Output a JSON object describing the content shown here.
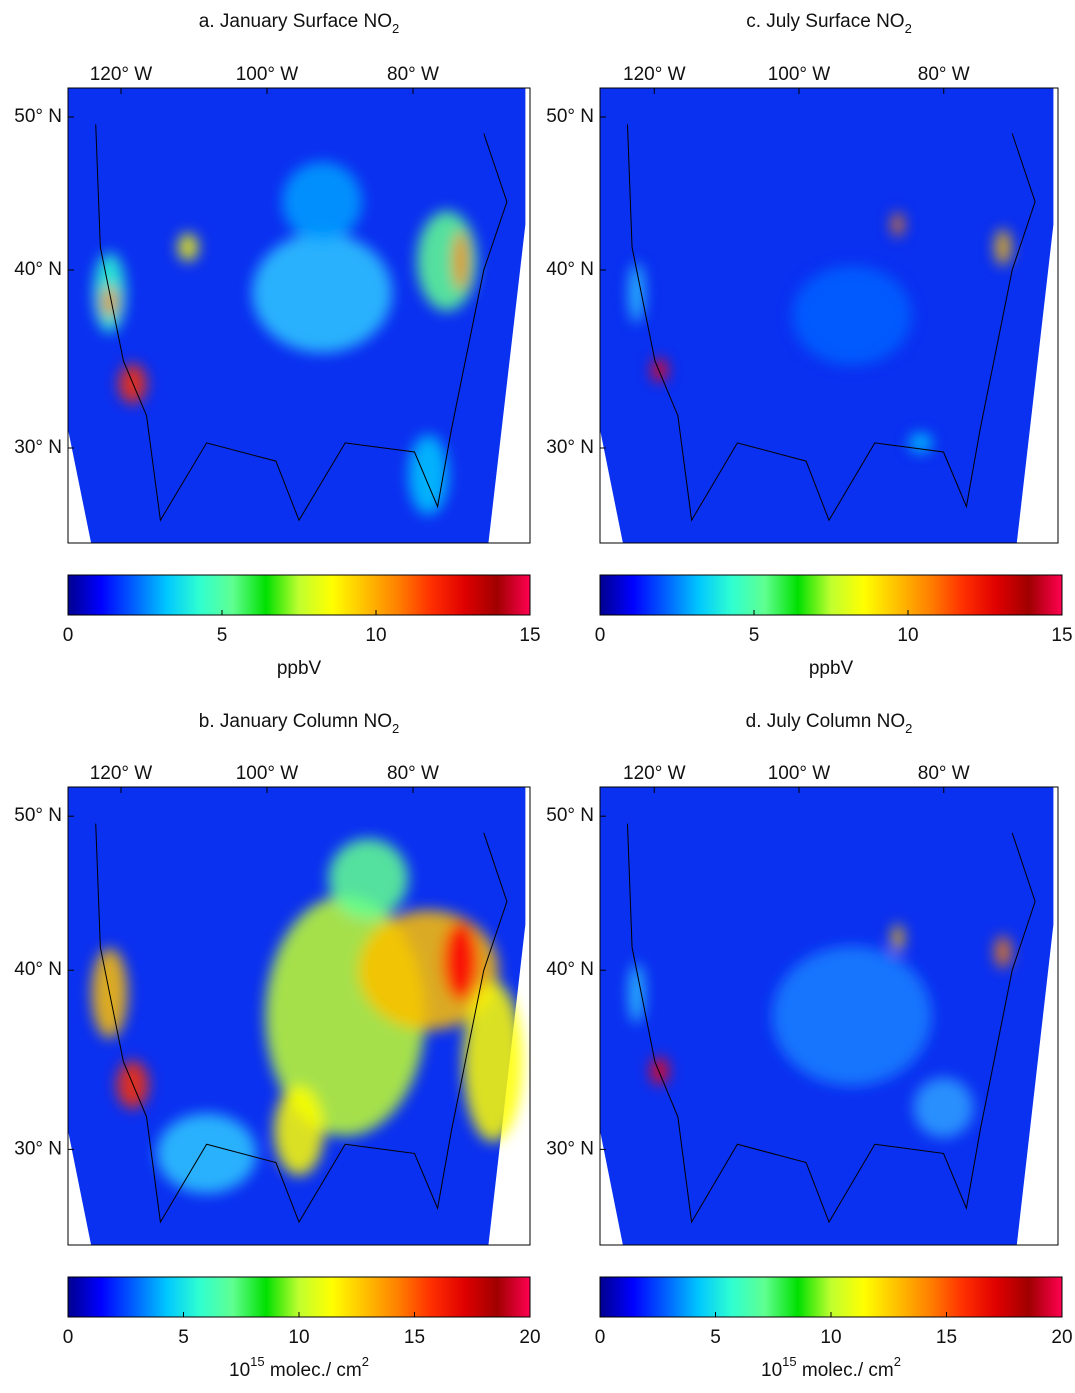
{
  "colormap": [
    "#00008f",
    "#0000ff",
    "#0060ff",
    "#00c8ff",
    "#30ffd0",
    "#60ff90",
    "#00e000",
    "#c0ff30",
    "#ffff00",
    "#ffc000",
    "#ff8000",
    "#ff3000",
    "#e00000",
    "#a00000",
    "#ff0050"
  ],
  "panels": [
    {
      "title": [
        {
          "text": "a.  January Surface NO"
        },
        {
          "text": "2",
          "sub": true
        }
      ],
      "lon_ticks": [
        {
          "value": -120,
          "label": "120° W"
        },
        {
          "value": -100,
          "label": "100° W"
        },
        {
          "value": -80,
          "label": "80° W"
        }
      ],
      "lat_ticks": [
        {
          "value": 50,
          "label": "50° N"
        },
        {
          "value": 40,
          "label": "40° N"
        },
        {
          "value": 30,
          "label": "30° N"
        }
      ],
      "colorbar": {
        "lim": [
          0,
          15
        ],
        "ticks": [
          0,
          5,
          10,
          15
        ],
        "unit": [
          {
            "text": "ppbV"
          }
        ]
      }
    },
    {
      "title": [
        {
          "text": "c.  July Surface NO"
        },
        {
          "text": "2",
          "sub": true
        }
      ],
      "lon_ticks": [
        {
          "value": -120,
          "label": "120° W"
        },
        {
          "value": -100,
          "label": "100° W"
        },
        {
          "value": -80,
          "label": "80° W"
        }
      ],
      "lat_ticks": [
        {
          "value": 50,
          "label": "50° N"
        },
        {
          "value": 40,
          "label": "40° N"
        },
        {
          "value": 30,
          "label": "30° N"
        }
      ],
      "colorbar": {
        "lim": [
          0,
          15
        ],
        "ticks": [
          0,
          5,
          10,
          15
        ],
        "unit": [
          {
            "text": "ppbV"
          }
        ]
      }
    },
    {
      "title": [
        {
          "text": "b.  January Column NO"
        },
        {
          "text": "2",
          "sub": true
        }
      ],
      "lon_ticks": [
        {
          "value": -120,
          "label": "120° W"
        },
        {
          "value": -100,
          "label": "100° W"
        },
        {
          "value": -80,
          "label": "80° W"
        }
      ],
      "lat_ticks": [
        {
          "value": 50,
          "label": "50° N"
        },
        {
          "value": 40,
          "label": "40° N"
        },
        {
          "value": 30,
          "label": "30° N"
        }
      ],
      "colorbar": {
        "lim": [
          0,
          20
        ],
        "ticks": [
          0,
          5,
          10,
          15,
          20
        ],
        "unit": [
          {
            "text": "10"
          },
          {
            "text": "15",
            "sup": true
          },
          {
            "text": " molec./ cm"
          },
          {
            "text": "2",
            "sup": true
          }
        ]
      }
    },
    {
      "title": [
        {
          "text": "d.  July Column NO"
        },
        {
          "text": "2",
          "sub": true
        }
      ],
      "lon_ticks": [
        {
          "value": -120,
          "label": "120° W"
        },
        {
          "value": -100,
          "label": "100° W"
        },
        {
          "value": -80,
          "label": "80° W"
        }
      ],
      "lat_ticks": [
        {
          "value": 50,
          "label": "50° N"
        },
        {
          "value": 40,
          "label": "40° N"
        },
        {
          "value": 30,
          "label": "30° N"
        }
      ],
      "colorbar": {
        "lim": [
          0,
          20
        ],
        "ticks": [
          0,
          5,
          10,
          15,
          20
        ],
        "unit": [
          {
            "text": "10"
          },
          {
            "text": "15",
            "sup": true
          },
          {
            "text": " molec./ cm"
          },
          {
            "text": "2",
            "sup": true
          }
        ]
      }
    }
  ]
}
